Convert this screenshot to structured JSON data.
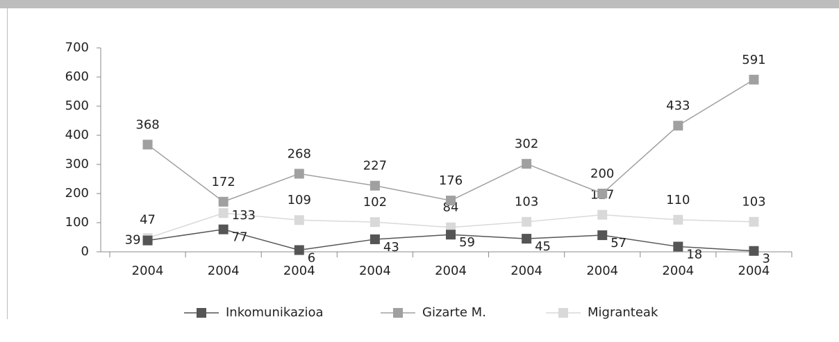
{
  "chart_data": {
    "type": "line",
    "categories": [
      "2004",
      "2004",
      "2004",
      "2004",
      "2004",
      "2004",
      "2004",
      "2004",
      "2004"
    ],
    "series": [
      {
        "name": "Inkomunikazioa",
        "color": "#555555",
        "values": [
          39,
          77,
          6,
          43,
          59,
          45,
          57,
          18,
          3
        ]
      },
      {
        "name": "Gizarte M.",
        "color": "#a0a0a0",
        "values": [
          368,
          172,
          268,
          227,
          176,
          302,
          200,
          433,
          591
        ]
      },
      {
        "name": "Migranteak",
        "color": "#d9d9d9",
        "values": [
          47,
          133,
          109,
          102,
          84,
          103,
          127,
          110,
          103
        ]
      }
    ],
    "ylim": [
      0,
      700
    ],
    "yticks": [
      0,
      100,
      200,
      300,
      400,
      500,
      600,
      700
    ],
    "legend": "bottom"
  }
}
